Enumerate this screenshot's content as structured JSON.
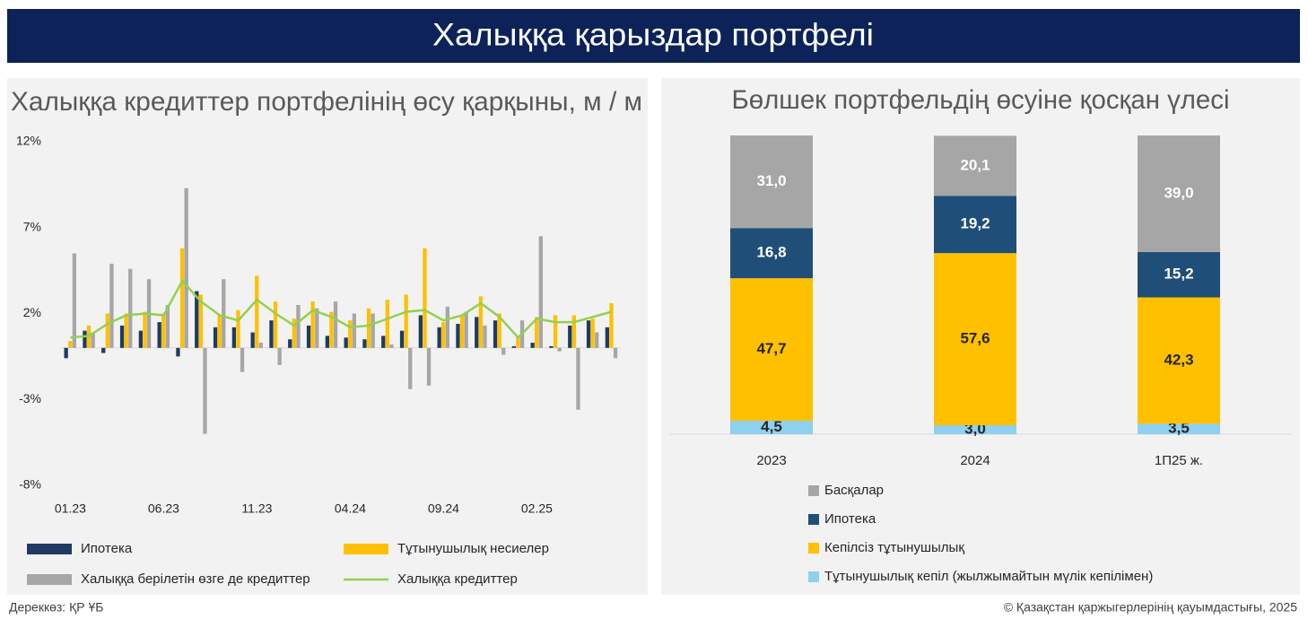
{
  "header": {
    "title": "Халыққа қарыздар портфелі"
  },
  "chart_data": [
    {
      "type": "bar",
      "title": "Халыққа кредиттер портфелінің өсу қарқыны, м / м",
      "categories": [
        "01.23",
        null,
        null,
        null,
        null,
        "06.23",
        null,
        null,
        null,
        null,
        "11.23",
        null,
        null,
        null,
        null,
        "04.24",
        null,
        null,
        null,
        null,
        "09.24",
        null,
        null,
        null,
        null,
        "02.25",
        null,
        null,
        null,
        null
      ],
      "ylim": [
        -8,
        12
      ],
      "yticks": [
        {
          "value": 12,
          "label": "12%"
        },
        {
          "value": 7,
          "label": "7%"
        },
        {
          "value": 2,
          "label": "2%"
        },
        {
          "value": -3,
          "label": "-3%"
        },
        {
          "value": -8,
          "label": "-8%"
        }
      ],
      "grid": false,
      "series": [
        {
          "name": "Ипотека",
          "type": "bar",
          "color": "#1f3b63",
          "values": [
            -0.6,
            1.0,
            -0.3,
            1.3,
            1.0,
            1.5,
            -0.5,
            3.3,
            1.2,
            1.2,
            0.9,
            1.6,
            0.5,
            1.3,
            0.7,
            0.6,
            0.5,
            0.7,
            1.0,
            1.9,
            1.2,
            1.4,
            1.8,
            1.6,
            0.1,
            0.3,
            0.1,
            1.3,
            1.6,
            1.2
          ]
        },
        {
          "name": "Тұтынушылық несиелер",
          "type": "bar",
          "color": "#ffc000",
          "values": [
            0.4,
            1.3,
            2.0,
            2.0,
            2.1,
            2.0,
            5.8,
            3.1,
            1.9,
            2.2,
            4.2,
            2.7,
            1.7,
            2.7,
            2.1,
            1.6,
            2.3,
            2.8,
            3.1,
            5.8,
            1.5,
            1.9,
            3.0,
            2.0,
            0.6,
            1.8,
            1.9,
            1.9,
            1.7,
            2.6
          ]
        },
        {
          "name": "Халыққа берілетін өзге де кредиттер",
          "type": "bar",
          "color": "#a6a6a6",
          "values": [
            5.5,
            0.9,
            4.9,
            4.6,
            4.0,
            2.5,
            9.3,
            -5.0,
            4.0,
            -1.4,
            0.3,
            -1.0,
            2.5,
            2.3,
            2.7,
            2.0,
            2.0,
            0.2,
            -2.4,
            -2.2,
            2.4,
            2.1,
            1.3,
            -0.4,
            1.6,
            6.5,
            -0.2,
            -3.6,
            0.9,
            -0.6
          ]
        },
        {
          "name": "Халыққа кредиттер",
          "type": "line",
          "color": "#92d050",
          "values": [
            0.6,
            0.7,
            1.4,
            1.9,
            2.0,
            1.9,
            3.9,
            2.7,
            1.9,
            1.6,
            2.8,
            2.0,
            1.3,
            2.2,
            1.8,
            1.2,
            1.3,
            1.7,
            2.1,
            2.2,
            1.6,
            1.9,
            2.6,
            1.8,
            0.6,
            1.7,
            1.5,
            1.5,
            1.8,
            2.1
          ]
        }
      ]
    },
    {
      "type": "stacked_bar",
      "title": "Бөлшек портфельдің өсуіне қосқан үлесі",
      "categories": [
        "2023",
        "2024",
        "1П25 ж."
      ],
      "series": [
        {
          "name": "Тұтынушылық кепіл (жылжымайтын мүлік кепілімен)",
          "color": "#8ed0f0",
          "label_color": "#262626",
          "values": [
            4.5,
            3.0,
            3.5
          ],
          "value_labels": [
            "4,5",
            "3,0",
            "3,5"
          ]
        },
        {
          "name": "Кепілсіз тұтынушылық",
          "color": "#ffc000",
          "label_color": "#262626",
          "values": [
            47.7,
            57.6,
            42.3
          ],
          "value_labels": [
            "47,7",
            "57,6",
            "42,3"
          ]
        },
        {
          "name": "Ипотека",
          "color": "#1f4e79",
          "label_color": "#ffffff",
          "values": [
            16.8,
            19.2,
            15.2
          ],
          "value_labels": [
            "16,8",
            "19,2",
            "15,2"
          ]
        },
        {
          "name": "Басқалар",
          "color": "#a6a6a6",
          "label_color": "#ffffff",
          "values": [
            31.0,
            20.1,
            39.0
          ],
          "value_labels": [
            "31,0",
            "20,1",
            "39,0"
          ]
        }
      ]
    }
  ],
  "footer": {
    "source": "Дереккөз: ҚР ҰБ",
    "copyright": "© Қазақстан қаржыгерлерінің қауымдастығы, 2025"
  }
}
